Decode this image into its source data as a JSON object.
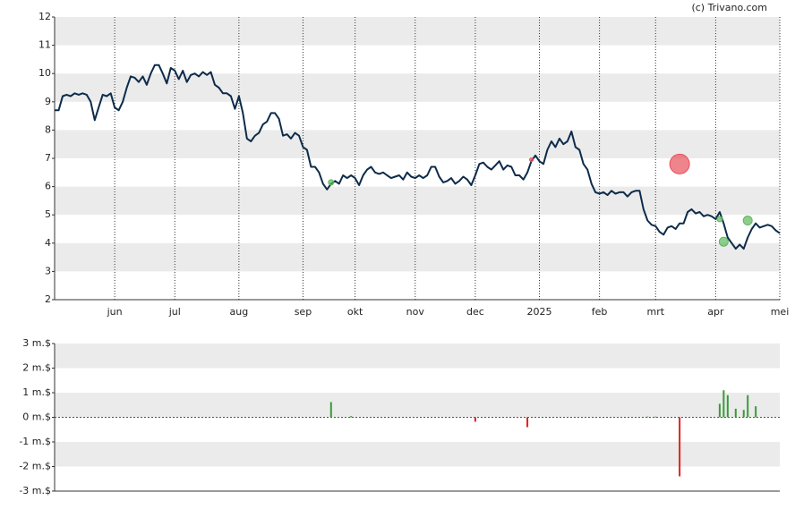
{
  "credit": "(c) Trivano.com",
  "chart_data": [
    {
      "type": "line",
      "grid": "bands",
      "xlim": [
        0,
        181
      ],
      "xticks": [
        {
          "value": 15,
          "label": "jun"
        },
        {
          "value": 30,
          "label": "jul"
        },
        {
          "value": 46,
          "label": "aug"
        },
        {
          "value": 62,
          "label": "sep"
        },
        {
          "value": 75,
          "label": "okt"
        },
        {
          "value": 90,
          "label": "nov"
        },
        {
          "value": 105,
          "label": "dec"
        },
        {
          "value": 121,
          "label": "2025"
        },
        {
          "value": 136,
          "label": "feb"
        },
        {
          "value": 150,
          "label": "mrt"
        },
        {
          "value": 165,
          "label": "apr"
        },
        {
          "value": 181,
          "label": "mei"
        }
      ],
      "ylim": [
        2,
        12
      ],
      "yticks": [
        2,
        3,
        4,
        5,
        6,
        7,
        8,
        9,
        10,
        11,
        12
      ],
      "series": [
        {
          "color": "#0d2b4a",
          "values": [
            8.7,
            8.7,
            9.2,
            9.25,
            9.2,
            9.3,
            9.25,
            9.3,
            9.25,
            9.0,
            8.35,
            8.8,
            9.25,
            9.2,
            9.3,
            8.8,
            8.7,
            9.0,
            9.5,
            9.9,
            9.85,
            9.7,
            9.9,
            9.6,
            10.0,
            10.3,
            10.3,
            10.0,
            9.65,
            10.2,
            10.1,
            9.8,
            10.1,
            9.7,
            9.95,
            10.0,
            9.9,
            10.05,
            9.95,
            10.05,
            9.6,
            9.5,
            9.3,
            9.3,
            9.2,
            8.75,
            9.2,
            8.6,
            7.7,
            7.6,
            7.8,
            7.9,
            8.2,
            8.3,
            8.6,
            8.6,
            8.4,
            7.8,
            7.85,
            7.7,
            7.9,
            7.8,
            7.4,
            7.3,
            6.7,
            6.7,
            6.5,
            6.1,
            5.9,
            6.1,
            6.2,
            6.1,
            6.4,
            6.3,
            6.4,
            6.3,
            6.05,
            6.4,
            6.6,
            6.7,
            6.5,
            6.45,
            6.5,
            6.4,
            6.3,
            6.35,
            6.4,
            6.25,
            6.5,
            6.35,
            6.3,
            6.4,
            6.3,
            6.4,
            6.7,
            6.7,
            6.35,
            6.15,
            6.2,
            6.3,
            6.1,
            6.2,
            6.35,
            6.25,
            6.05,
            6.4,
            6.8,
            6.85,
            6.7,
            6.6,
            6.75,
            6.9,
            6.6,
            6.75,
            6.7,
            6.4,
            6.4,
            6.25,
            6.5,
            6.9,
            7.1,
            6.9,
            6.8,
            7.3,
            7.6,
            7.4,
            7.7,
            7.5,
            7.6,
            7.95,
            7.4,
            7.3,
            6.8,
            6.6,
            6.1,
            5.8,
            5.75,
            5.8,
            5.7,
            5.85,
            5.75,
            5.8,
            5.8,
            5.65,
            5.8,
            5.85,
            5.85,
            5.2,
            4.8,
            4.65,
            4.6,
            4.4,
            4.3,
            4.55,
            4.6,
            4.5,
            4.7,
            4.7,
            5.1,
            5.2,
            5.05,
            5.1,
            4.95,
            5.0,
            4.95,
            4.85,
            5.1,
            4.7,
            4.2,
            4.0,
            3.8,
            3.95,
            3.8,
            4.2,
            4.5,
            4.7,
            4.55,
            4.6,
            4.65,
            4.6,
            4.45,
            4.35
          ]
        }
      ],
      "markers": {
        "x": [
          69,
          119,
          156,
          166,
          167,
          173
        ],
        "values": [
          6.15,
          6.95,
          6.8,
          4.85,
          4.05,
          4.8
        ],
        "sizes": [
          3,
          2,
          11,
          3,
          5,
          5
        ],
        "colors": [
          "#5cb85c",
          "#e8505b",
          "#e8505b",
          "#5cb85c",
          "#5cb85c",
          "#5cb85c"
        ]
      }
    },
    {
      "type": "bar",
      "grid": "bands",
      "xlim": [
        0,
        181
      ],
      "ylim": [
        -3,
        3
      ],
      "yticks": [
        {
          "value": -3,
          "label": "-3 m.$"
        },
        {
          "value": -2,
          "label": "-2 m.$"
        },
        {
          "value": -1,
          "label": "-1 m.$"
        },
        {
          "value": 0,
          "label": "0 m.$"
        },
        {
          "value": 1,
          "label": "1 m.$"
        },
        {
          "value": 2,
          "label": "2 m.$"
        },
        {
          "value": 3,
          "label": "3 m.$"
        }
      ],
      "x": [
        69,
        74,
        105,
        118,
        148,
        150,
        156,
        166,
        167,
        168,
        170,
        172,
        173,
        175
      ],
      "values": [
        0.62,
        0.05,
        -0.18,
        -0.4,
        0.03,
        0.03,
        -2.4,
        0.55,
        1.1,
        0.9,
        0.35,
        0.3,
        0.9,
        0.45
      ],
      "colors": [
        "#3a9a3a",
        "#3a9a3a",
        "#e02020",
        "#e02020",
        "#3a9a3a",
        "#3a9a3a",
        "#e02020",
        "#3a9a3a",
        "#3a9a3a",
        "#3a9a3a",
        "#3a9a3a",
        "#3a9a3a",
        "#3a9a3a",
        "#3a9a3a"
      ]
    }
  ]
}
